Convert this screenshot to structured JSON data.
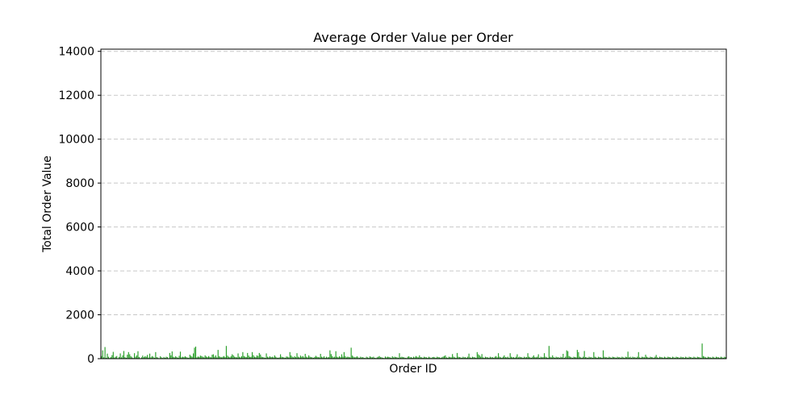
{
  "chart_data": {
    "type": "bar",
    "title": "Average Order Value per Order",
    "xlabel": "Order ID",
    "ylabel": "Total Order Value",
    "ylim": [
      0,
      14100
    ],
    "yticks": [
      0,
      2000,
      4000,
      6000,
      8000,
      10000,
      12000,
      14000
    ],
    "grid": "y-dashed",
    "bar_color": "#2ca02c",
    "show_x_tick_labels": false,
    "values": [
      120,
      380,
      60,
      530,
      40,
      230,
      90,
      30,
      70,
      160,
      310,
      50,
      90,
      120,
      20,
      80,
      240,
      60,
      150,
      350,
      70,
      40,
      180,
      300,
      200,
      110,
      60,
      30,
      250,
      90,
      150,
      340,
      80,
      20,
      60,
      140,
      70,
      110,
      90,
      170,
      50,
      230,
      60,
      120,
      90,
      40,
      300,
      70,
      50,
      20,
      110,
      60,
      30,
      80,
      40,
      90,
      70,
      20,
      260,
      150,
      330,
      90,
      60,
      110,
      70,
      40,
      130,
      320,
      60,
      90,
      70,
      110,
      80,
      50,
      40,
      180,
      130,
      90,
      240,
      500,
      550,
      60,
      100,
      80,
      140,
      120,
      90,
      60,
      150,
      100,
      70,
      120,
      80,
      60,
      180,
      200,
      90,
      150,
      60,
      400,
      110,
      80,
      60,
      90,
      120,
      70,
      580,
      140,
      90,
      60,
      110,
      200,
      150,
      90,
      70,
      60,
      240,
      90,
      60,
      110,
      300,
      120,
      90,
      70,
      260,
      140,
      80,
      90,
      300,
      160,
      90,
      70,
      150,
      120,
      260,
      190,
      90,
      70,
      60,
      40,
      240,
      90,
      60,
      110,
      70,
      90,
      60,
      150,
      90,
      50,
      40,
      60,
      200,
      90,
      70,
      60,
      40,
      100,
      90,
      60,
      300,
      150,
      90,
      60,
      110,
      70,
      250,
      90,
      60,
      140,
      90,
      120,
      60,
      220,
      90,
      60,
      150,
      90,
      70,
      60,
      40,
      80,
      130,
      90,
      70,
      60,
      220,
      90,
      60,
      110,
      40,
      90,
      60,
      70,
      380,
      210,
      120,
      60,
      90,
      340,
      90,
      60,
      110,
      70,
      200,
      90,
      300,
      120,
      60,
      90,
      80,
      60,
      500,
      140,
      90,
      60,
      70,
      110,
      60,
      40,
      90,
      60,
      70,
      40,
      30,
      90,
      60,
      40,
      110,
      70,
      60,
      90,
      40,
      30,
      60,
      90,
      120,
      70,
      60,
      40,
      30,
      100,
      60,
      90,
      80,
      60,
      40,
      110,
      60,
      90,
      70,
      60,
      40,
      250,
      60,
      90,
      70,
      60,
      40,
      30,
      90,
      110,
      60,
      70,
      40,
      90,
      60,
      120,
      90,
      60,
      150,
      70,
      60,
      40,
      90,
      70,
      60,
      40,
      90,
      60,
      30,
      70,
      80,
      60,
      40,
      90,
      70,
      60,
      40,
      60,
      90,
      120,
      150,
      60,
      40,
      90,
      70,
      60,
      210,
      90,
      60,
      40,
      260,
      90,
      70,
      60,
      40,
      90,
      60,
      70,
      40,
      90,
      230,
      60,
      40,
      90,
      70,
      60,
      40,
      300,
      200,
      150,
      90,
      210,
      60,
      40,
      90,
      70,
      60,
      40,
      90,
      60,
      70,
      40,
      90,
      120,
      60,
      250,
      90,
      60,
      40,
      90,
      150,
      70,
      60,
      90,
      40,
      250,
      90,
      60,
      70,
      40,
      90,
      200,
      60,
      90,
      70,
      60,
      40,
      90,
      60,
      70,
      250,
      90,
      60,
      40,
      90,
      150,
      70,
      60,
      90,
      200,
      40,
      90,
      60,
      70,
      250,
      90,
      60,
      40,
      580,
      90,
      60,
      150,
      70,
      40,
      90,
      60,
      70,
      40,
      90,
      60,
      220,
      40,
      90,
      380,
      340,
      120,
      90,
      60,
      40,
      90,
      70,
      60,
      400,
      300,
      90,
      60,
      40,
      90,
      350,
      70,
      60,
      40,
      90,
      60,
      70,
      40,
      300,
      90,
      60,
      40,
      90,
      70,
      60,
      40,
      380,
      90,
      60,
      70,
      40,
      90,
      60,
      40,
      90,
      70,
      60,
      40,
      90,
      60,
      70,
      40,
      90,
      60,
      40,
      90,
      70,
      320,
      60,
      90,
      40,
      90,
      60,
      70,
      40,
      90,
      300,
      60,
      40,
      90,
      70,
      60,
      180,
      90,
      60,
      40,
      90,
      70,
      60,
      40,
      90,
      170,
      60,
      40,
      90,
      70,
      60,
      40,
      90,
      60,
      40,
      90,
      70,
      60,
      40,
      90,
      60,
      40,
      90,
      70,
      60,
      40,
      90,
      60,
      70,
      40,
      90,
      60,
      40,
      90,
      70,
      60,
      40,
      90,
      60,
      40,
      90,
      70,
      60,
      40,
      690,
      120,
      90,
      60,
      40,
      90,
      70,
      60,
      40,
      90,
      60,
      40,
      90,
      70,
      60,
      40,
      90,
      60,
      40,
      90,
      70
    ]
  }
}
